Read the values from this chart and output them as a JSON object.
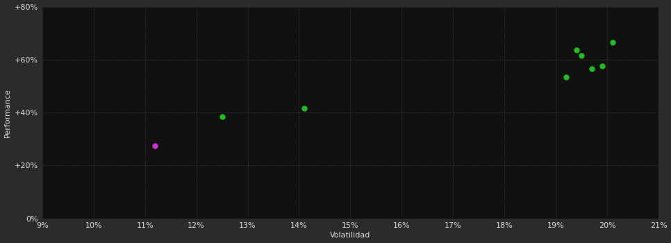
{
  "background_color": "#2b2b2b",
  "plot_bg_color": "#111111",
  "grid_color": "#555555",
  "text_color": "#dddddd",
  "xlabel": "Volatilidad",
  "ylabel": "Performance",
  "xlim": [
    0.09,
    0.21
  ],
  "ylim": [
    0.0,
    0.8
  ],
  "xticks": [
    0.09,
    0.1,
    0.11,
    0.12,
    0.13,
    0.14,
    0.15,
    0.16,
    0.17,
    0.18,
    0.19,
    0.2,
    0.21
  ],
  "yticks": [
    0.0,
    0.2,
    0.4,
    0.6,
    0.8
  ],
  "ytick_labels": [
    "0%",
    "+20%",
    "+40%",
    "+60%",
    "+80%"
  ],
  "green_points": [
    [
      0.125,
      0.385
    ],
    [
      0.141,
      0.415
    ],
    [
      0.192,
      0.535
    ],
    [
      0.194,
      0.635
    ],
    [
      0.195,
      0.615
    ],
    [
      0.197,
      0.565
    ],
    [
      0.199,
      0.575
    ],
    [
      0.201,
      0.665
    ]
  ],
  "magenta_points": [
    [
      0.112,
      0.275
    ]
  ],
  "green_color": "#22bb22",
  "magenta_color": "#cc33cc",
  "marker_size": 5
}
